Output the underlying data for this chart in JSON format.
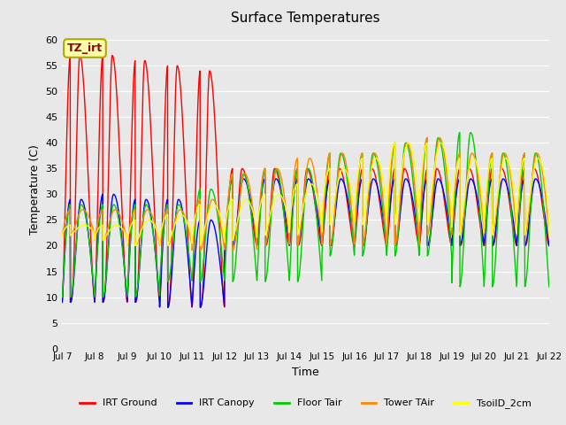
{
  "title": "Surface Temperatures",
  "xlabel": "Time",
  "ylabel": "Temperature (C)",
  "ylim": [
    0,
    62
  ],
  "yticks": [
    0,
    5,
    10,
    15,
    20,
    25,
    30,
    35,
    40,
    45,
    50,
    55,
    60
  ],
  "bg_color": "#e8e8e8",
  "grid_color": "#ffffff",
  "annotation_text": "TZ_irt",
  "annotation_bg": "#ffffaa",
  "annotation_border": "#aaaa00",
  "annotation_text_color": "#8B0000",
  "series": {
    "IRT_Ground": {
      "color": "#ff0000",
      "label": "IRT Ground"
    },
    "IRT_Canopy": {
      "color": "#0000ff",
      "label": "IRT Canopy"
    },
    "Floor_Tair": {
      "color": "#00cc00",
      "label": "Floor Tair"
    },
    "Tower_TAir": {
      "color": "#ff8800",
      "label": "Tower TAir"
    },
    "TsoilD_2cm": {
      "color": "#ffff00",
      "label": "TsoilD_2cm"
    }
  },
  "x_tick_labels": [
    "Jul 7",
    "Jul 8",
    "Jul 9",
    "Jul 10",
    "Jul 11",
    "Jul 12",
    "Jul 13",
    "Jul 14",
    "Jul 15",
    "Jul 16",
    "Jul 17",
    "Jul 18",
    "Jul 19",
    "Jul 20",
    "Jul 21",
    "Jul 22"
  ]
}
